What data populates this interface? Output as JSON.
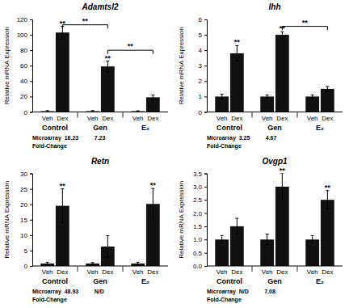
{
  "chart_data": [
    {
      "type": "bar",
      "title": "Adamtsl2",
      "y_label": "Relative mRNA Expression",
      "categories": [
        "Control",
        "Gen",
        "E₂"
      ],
      "series": [
        {
          "name": "Veh",
          "color": "#111111",
          "values": [
            1,
            1,
            1
          ],
          "errors": [
            0.8,
            0.8,
            0.5
          ]
        },
        {
          "name": "Dex",
          "color": "#111111",
          "values": [
            103,
            59,
            19
          ],
          "errors": [
            8,
            7,
            3
          ]
        }
      ],
      "ylim": [
        0,
        120
      ],
      "yticks": [
        0,
        20,
        40,
        60,
        80,
        100,
        120
      ],
      "annotations": [
        {
          "text": "**",
          "category": "Control",
          "series": "Dex"
        },
        {
          "text": "**",
          "category": "Gen",
          "series": "Dex"
        }
      ],
      "brackets": [
        {
          "text": "**",
          "from": "Control",
          "to": "Gen",
          "series": "Dex",
          "y": 113
        },
        {
          "text": "**",
          "from": "Gen",
          "to": "E₂",
          "series": "Dex",
          "y": 80
        }
      ],
      "footnotes": [
        "Microarray  16.23          7.23",
        "Fold-Change"
      ]
    },
    {
      "type": "bar",
      "title": "Ihh",
      "y_label": "Relative mRNA Expression",
      "categories": [
        "Control",
        "Gen",
        "E₂"
      ],
      "series": [
        {
          "name": "Veh",
          "color": "#111111",
          "values": [
            1.0,
            1.0,
            1.0
          ],
          "errors": [
            0.15,
            0.1,
            0.1
          ]
        },
        {
          "name": "Dex",
          "color": "#111111",
          "values": [
            3.8,
            5.0,
            1.5
          ],
          "errors": [
            0.5,
            0.2,
            0.15
          ]
        }
      ],
      "ylim": [
        0,
        6
      ],
      "yticks": [
        0,
        1,
        2,
        3,
        4,
        5,
        6
      ],
      "annotations": [
        {
          "text": "**",
          "category": "Control",
          "series": "Dex"
        },
        {
          "text": "**",
          "category": "Gen",
          "series": "Dex"
        }
      ],
      "brackets": [
        {
          "text": "**",
          "from": "Gen",
          "to": "E₂",
          "series": "Dex",
          "y": 5.55
        }
      ],
      "footnotes": [
        "Microarray  3.25          4.67",
        "Fold-Change"
      ]
    },
    {
      "type": "bar",
      "title": "Retn",
      "y_label": "Relative mRNA Expression",
      "categories": [
        "Control",
        "Gen",
        "E₂"
      ],
      "series": [
        {
          "name": "Veh",
          "color": "#111111",
          "values": [
            0.8,
            0.8,
            0.8
          ],
          "errors": [
            0.4,
            0.3,
            0.4
          ]
        },
        {
          "name": "Dex",
          "color": "#111111",
          "values": [
            19.5,
            6.3,
            20.1
          ],
          "errors": [
            5.5,
            3.5,
            5.0
          ]
        }
      ],
      "ylim": [
        0,
        30
      ],
      "yticks": [
        0,
        5,
        10,
        15,
        20,
        25,
        30
      ],
      "annotations": [
        {
          "text": "**",
          "category": "Control",
          "series": "Dex"
        },
        {
          "text": "**",
          "category": "E₂",
          "series": "Dex"
        }
      ],
      "brackets": [],
      "footnotes": [
        "Microarray  48.93          N/D",
        "Fold-Change"
      ]
    },
    {
      "type": "bar",
      "title": "Ovgp1",
      "y_label": "Relative mRNA Expression",
      "categories": [
        "Control",
        "Gen",
        "E₂"
      ],
      "series": [
        {
          "name": "Veh",
          "color": "#111111",
          "values": [
            1.0,
            1.0,
            1.0
          ],
          "errors": [
            0.15,
            0.2,
            0.15
          ]
        },
        {
          "name": "Dex",
          "color": "#111111",
          "values": [
            1.5,
            3.0,
            2.5
          ],
          "errors": [
            0.3,
            0.5,
            0.35
          ]
        }
      ],
      "ylim": [
        0,
        3.5
      ],
      "yticks": [
        {
          "value": 0,
          "label": "0.0"
        },
        0.5,
        {
          "value": 1,
          "label": "1.0"
        },
        1.5,
        {
          "value": 2,
          "label": "2.0"
        },
        2.5,
        {
          "value": 3,
          "label": "3.0"
        },
        3.5
      ],
      "annotations": [
        {
          "text": "**",
          "category": "Gen",
          "series": "Dex"
        },
        {
          "text": "**",
          "category": "E₂",
          "series": "Dex"
        }
      ],
      "brackets": [],
      "footnotes": [
        "Microarray  N/D          7.08",
        "Fold-Change"
      ]
    }
  ]
}
